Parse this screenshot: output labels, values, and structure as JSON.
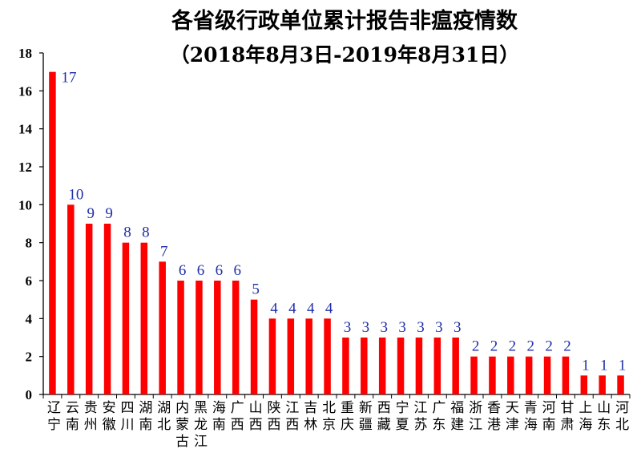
{
  "chart_data": {
    "type": "bar",
    "title": "各省级行政单位累计报告非瘟疫情数",
    "subtitle": "（2018年8月3日-2019年8月31日）",
    "categories": [
      "辽宁",
      "云南",
      "贵州",
      "安徽",
      "四川",
      "湖南",
      "湖北",
      "内蒙古",
      "黑龙江",
      "海南",
      "广西",
      "山西",
      "陕西",
      "江西",
      "吉林",
      "北京",
      "重庆",
      "新疆",
      "西藏",
      "宁夏",
      "江苏",
      "广东",
      "福建",
      "浙江",
      "香港",
      "天津",
      "青海",
      "河南",
      "甘肃",
      "上海",
      "山东",
      "河北"
    ],
    "values": [
      17,
      10,
      9,
      9,
      8,
      8,
      7,
      6,
      6,
      6,
      6,
      5,
      4,
      4,
      4,
      4,
      3,
      3,
      3,
      3,
      3,
      3,
      3,
      2,
      2,
      2,
      2,
      2,
      2,
      1,
      1,
      1
    ],
    "xlabel": "",
    "ylabel": "",
    "ylim": [
      0,
      18
    ],
    "yticks": [
      0,
      2,
      4,
      6,
      8,
      10,
      12,
      14,
      16,
      18
    ],
    "grid": false,
    "legend": "none",
    "bar_color": "#ff0000",
    "label_color": "#1f2fa8"
  }
}
